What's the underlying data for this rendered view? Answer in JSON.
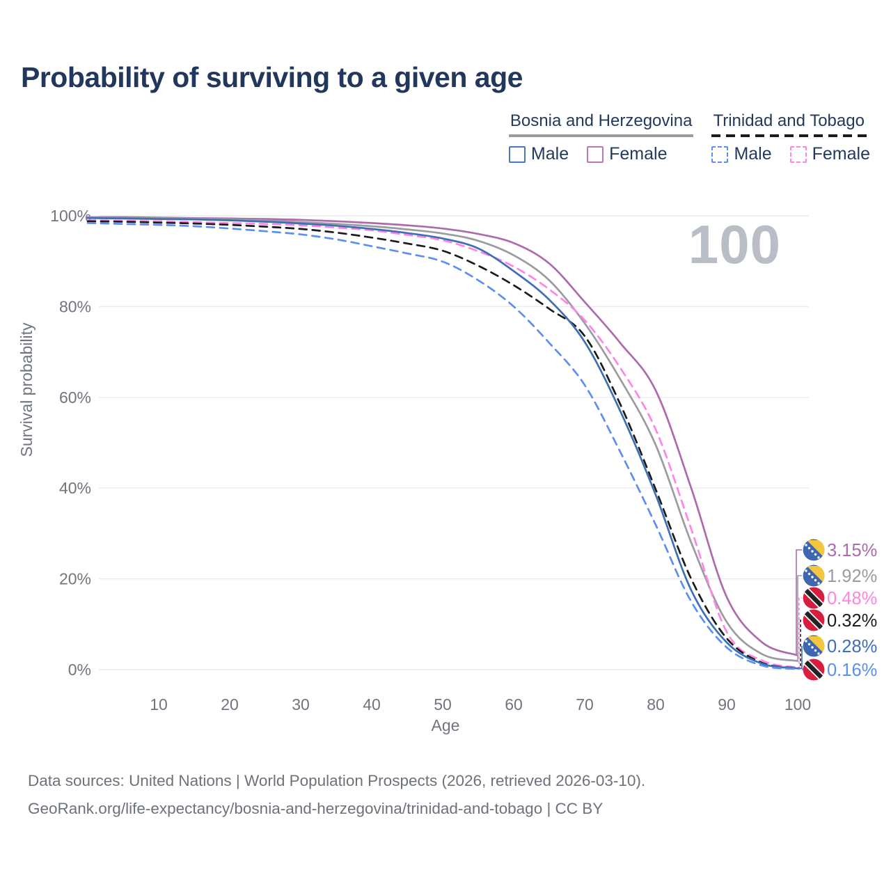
{
  "title": "Probability of surviving to a given age",
  "watermark": "100",
  "legend": {
    "groups": [
      {
        "country": "Bosnia and Herzegovina",
        "line_color": "#9b9ba1",
        "line_style": "solid",
        "items": [
          {
            "label": "Male",
            "color": "#4478bb",
            "style": "solid"
          },
          {
            "label": "Female",
            "color": "#bb77b5",
            "style": "solid"
          }
        ]
      },
      {
        "country": "Trinidad and Tobago",
        "line_color": "#1b1b1b",
        "line_style": "dashed",
        "items": [
          {
            "label": "Male",
            "color": "#5b8ff2",
            "style": "dashed"
          },
          {
            "label": "Female",
            "color": "#ff85e2",
            "style": "dashed"
          }
        ]
      }
    ]
  },
  "chart_data": {
    "type": "line",
    "title": "Probability of surviving to a given age",
    "xlabel": "Age",
    "ylabel": "Survival probability",
    "ylim": [
      0,
      100
    ],
    "yticks": [
      0,
      20,
      40,
      60,
      80,
      100
    ],
    "ytick_suffix": "%",
    "xticks": [
      10,
      20,
      30,
      40,
      50,
      60,
      70,
      80,
      90,
      100
    ],
    "grid": "horizontal",
    "age_indicator": "100",
    "x": [
      0,
      5,
      10,
      15,
      20,
      25,
      30,
      35,
      40,
      45,
      50,
      55,
      60,
      65,
      70,
      75,
      80,
      85,
      90,
      95,
      100
    ],
    "series": [
      {
        "name": "Bosnia and Herzegovina — Female",
        "color": "#ad6bac",
        "dash": "solid",
        "flag": "bosnia",
        "end_label": "3.15%",
        "values": [
          99.7,
          99.7,
          99.6,
          99.5,
          99.4,
          99.3,
          99.1,
          98.8,
          98.4,
          97.9,
          97.2,
          96.0,
          94.0,
          89.5,
          81.0,
          72.0,
          61.5,
          40.0,
          16.0,
          6.0,
          3.15
        ]
      },
      {
        "name": "Bosnia and Herzegovina",
        "color": "#9b9ba1",
        "dash": "solid",
        "flag": "bosnia",
        "end_label": "1.92%",
        "values": [
          99.6,
          99.5,
          99.5,
          99.4,
          99.2,
          99.0,
          98.6,
          98.2,
          97.7,
          97.0,
          96.1,
          94.5,
          91.3,
          85.8,
          76.3,
          64.0,
          49.5,
          28.0,
          10.5,
          3.4,
          1.92
        ]
      },
      {
        "name": "Trinidad and Tobago — Female",
        "color": "#ff85e2",
        "dash": "dashed",
        "flag": "trinidad",
        "end_label": "0.48%",
        "values": [
          99.0,
          98.9,
          98.8,
          98.6,
          98.4,
          98.2,
          97.9,
          97.4,
          96.8,
          95.8,
          94.6,
          92.2,
          88.8,
          83.8,
          77.0,
          66.5,
          52.9,
          31.0,
          8.3,
          2.0,
          0.48
        ]
      },
      {
        "name": "Trinidad and Tobago",
        "color": "#1b1b1b",
        "dash": "dashed",
        "flag": "trinidad",
        "end_label": "0.32%",
        "values": [
          98.8,
          98.7,
          98.5,
          98.3,
          98.0,
          97.6,
          97.1,
          96.3,
          95.2,
          93.9,
          92.3,
          89.0,
          84.7,
          79.5,
          73.5,
          58.5,
          39.7,
          20.0,
          6.9,
          1.5,
          0.32
        ]
      },
      {
        "name": "Bosnia and Herzegovina — Male",
        "color": "#3e6fb5",
        "dash": "solid",
        "flag": "bosnia",
        "end_label": "0.28%",
        "values": [
          99.5,
          99.4,
          99.3,
          99.2,
          99.0,
          98.7,
          98.3,
          97.8,
          97.1,
          96.2,
          95.0,
          92.8,
          87.8,
          81.5,
          72.2,
          57.0,
          38.5,
          17.5,
          6.0,
          1.3,
          0.28
        ]
      },
      {
        "name": "Trinidad and Tobago — Male",
        "color": "#5b8ff2",
        "dash": "dashed",
        "flag": "trinidad",
        "end_label": "0.16%",
        "values": [
          98.4,
          98.2,
          98.0,
          97.7,
          97.2,
          96.6,
          95.9,
          94.8,
          93.3,
          91.7,
          89.9,
          85.8,
          80.0,
          72.0,
          62.7,
          48.0,
          31.9,
          15.0,
          4.9,
          0.9,
          0.16
        ]
      }
    ],
    "flag_colors": {
      "bosnia_blue": "#3f66b0",
      "bosnia_yellow": "#f4c63f",
      "bosnia_star": "#ffffff",
      "trinidad_red": "#d81e3f",
      "trinidad_black": "#222222",
      "trinidad_white": "#ffffff"
    }
  },
  "colors": {
    "title": "#21375c",
    "axis_text": "#70757d",
    "gridline": "#ebebee",
    "watermark": "#b9bdc6",
    "footer": "#6d727a"
  },
  "footer": {
    "line1": "Data sources: United Nations | World Population Prospects (2026, retrieved 2026-03-10).",
    "line2": "GeoRank.org/life-expectancy/bosnia-and-herzegovina/trinidad-and-tobago | CC BY"
  }
}
